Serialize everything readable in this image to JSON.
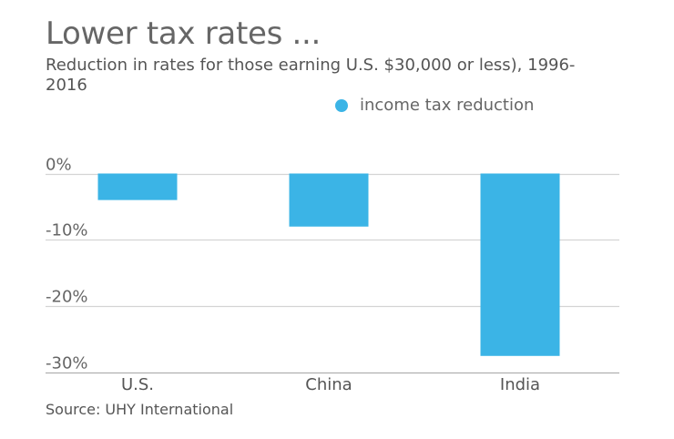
{
  "title": "Lower tax rates ...",
  "subtitle": "Reduction in rates for those earning U.S. $30,000 or less), 1996-2016",
  "source": "Source: UHY International",
  "colors": {
    "bar": "#3bb4e6",
    "grid": "#d4d4d4",
    "axis": "#b0b0b0"
  },
  "chart_data": {
    "type": "bar",
    "title": "Lower tax rates ...",
    "subtitle": "Reduction in rates for those earning U.S. $30,000 or less), 1996-2016",
    "xlabel": "",
    "ylabel": "",
    "categories": [
      "U.S.",
      "China",
      "India"
    ],
    "series": [
      {
        "name": "income tax reduction",
        "color": "#3bb4e6",
        "values": [
          -4,
          -8,
          -27.5
        ]
      }
    ],
    "ylim": [
      -30,
      0
    ],
    "yticks": [
      0,
      -10,
      -20,
      -30
    ],
    "ytick_labels": [
      "0%",
      "-10%",
      "-20%",
      "-30%"
    ],
    "grid": true,
    "legend_position": "top-right",
    "source": "Source: UHY International"
  }
}
